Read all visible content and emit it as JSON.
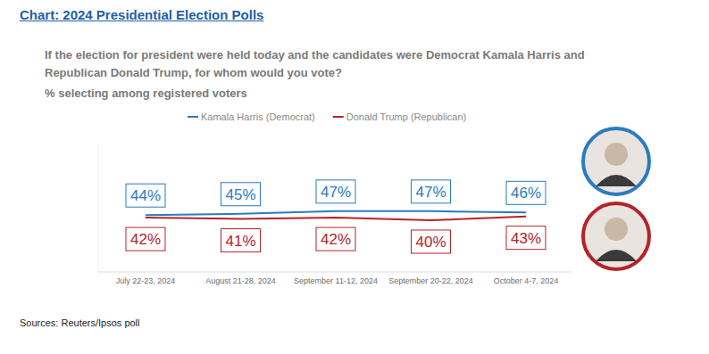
{
  "chart_data": {
    "type": "line",
    "title": "Chart: 2024 Presidential Election Polls",
    "subtitle": "If the election for president were held today and the candidates were Democrat Kamala Harris and Republican Donald Trump, for whom would you vote?",
    "ylabel": "% selecting among registered voters",
    "source": "Sources: Reuters/Ipsos poll",
    "categories": [
      "July 22-23, 2024",
      "August 21-28, 2024",
      "September 11-12, 2024",
      "September 20-22, 2024",
      "October 4-7, 2024"
    ],
    "series": [
      {
        "name": "Kamala Harris (Democrat)",
        "color": "#2b7bc0",
        "values": [
          44,
          45,
          47,
          47,
          46
        ],
        "value_labels": [
          "44%",
          "45%",
          "47%",
          "47%",
          "46%"
        ]
      },
      {
        "name": "Donald Trump (Republican)",
        "color": "#b5232a",
        "values": [
          42,
          41,
          42,
          40,
          43
        ],
        "value_labels": [
          "42%",
          "41%",
          "42%",
          "40%",
          "43%"
        ]
      }
    ],
    "ylim": [
      0,
      100
    ],
    "grid": false,
    "legend": "top",
    "data_labels": true,
    "tick_labels": "x"
  }
}
